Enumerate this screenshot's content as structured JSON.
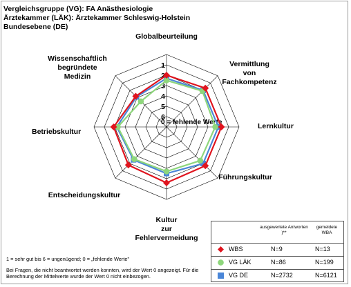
{
  "header": {
    "line1": "Vergleichsgruppe (VG): FA Anästhesiologie",
    "line2": "Ärztekammer (LÄK): Ärztekammer Schleswig-Holstein",
    "line3": "Bundesebene (DE)"
  },
  "colors": {
    "wbs": "#e0141e",
    "vg_laek": "#8ed67c",
    "vg_de": "#4a86d8",
    "grid": "#000000"
  },
  "chart_data": {
    "type": "radar",
    "axes": [
      {
        "lines": [
          "Globalbeurteilung"
        ]
      },
      {
        "lines": [
          "Vermittlung",
          "von",
          "Fachkompetenz"
        ]
      },
      {
        "lines": [
          "Lernkultur"
        ]
      },
      {
        "lines": [
          "Führungskultur"
        ]
      },
      {
        "lines": [
          "Kultur",
          "zur",
          "Fehlervermeidung"
        ]
      },
      {
        "lines": [
          "Entscheidungskultur"
        ]
      },
      {
        "lines": [
          "Betriebskultur"
        ]
      },
      {
        "lines": [
          "Wissenschaftlich",
          "begründete",
          "Medizin"
        ]
      }
    ],
    "scale_labels": [
      "1",
      "2",
      "3",
      "4",
      "5",
      "6"
    ],
    "zero_label": "0 = fehlende Werte",
    "range": [
      1,
      6
    ],
    "reverse_scale": true,
    "series": [
      {
        "key": "vg_de",
        "values": [
          2.3,
          2.0,
          2.0,
          2.0,
          2.5,
          2.5,
          2.2,
          2.9
        ]
      },
      {
        "key": "vg_laek",
        "values": [
          2.5,
          2.1,
          2.3,
          2.4,
          2.7,
          2.6,
          2.3,
          3.5
        ]
      },
      {
        "key": "wbs",
        "values": [
          2.0,
          1.7,
          1.7,
          1.7,
          1.6,
          1.8,
          1.9,
          2.8
        ]
      }
    ]
  },
  "legend": {
    "head_col1": "ausgewertete Antworten )**",
    "head_col2": "gemeldete WBA",
    "rows": [
      {
        "key": "wbs",
        "label": "WBS",
        "n1": "N=9",
        "n2": "N=13"
      },
      {
        "key": "vg_laek",
        "label": "VG LÄK",
        "n1": "N=86",
        "n2": "N=199"
      },
      {
        "key": "vg_de",
        "label": "VG DE",
        "n1": "N=2732",
        "n2": "N=6121"
      }
    ]
  },
  "footnote": {
    "scale": "1 = sehr gut bis 6 = ungenügend; 0 = „fehlende Werte\"",
    "note_line1": "Bei Fragen, die nicht beantwortet werden konnten, wird der Wert 0 angezeigt. Für die",
    "note_line2": "Berechnung der Mittelwerte wurde der Wert 0 nicht einbezogen."
  }
}
